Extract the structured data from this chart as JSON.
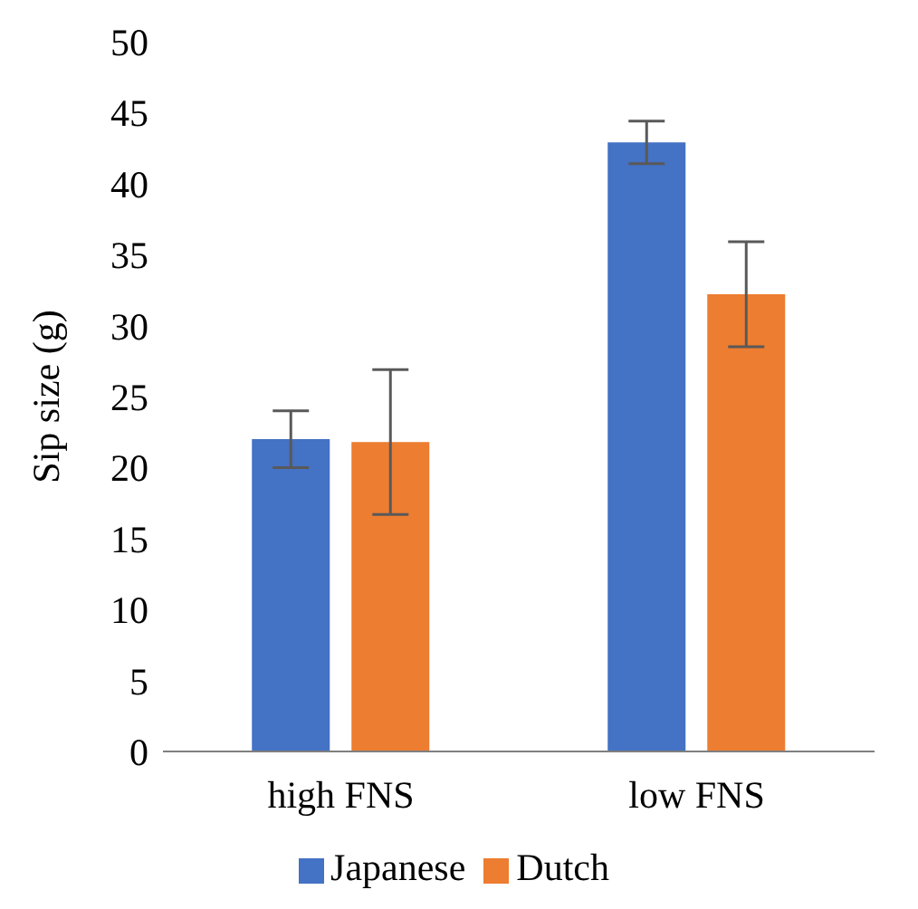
{
  "chart_data": {
    "type": "bar",
    "ylabel": "Sip size (g)",
    "categories": [
      "high FNS",
      "low FNS"
    ],
    "series": [
      {
        "name": "Japanese",
        "color": "#4472c4",
        "values": [
          22.0,
          42.9
        ],
        "errors": [
          2.0,
          1.5
        ]
      },
      {
        "name": "Dutch",
        "color": "#ed7d31",
        "values": [
          21.8,
          32.2
        ],
        "errors": [
          5.1,
          3.7
        ]
      }
    ],
    "ylim": [
      0,
      50
    ],
    "yticks": [
      0,
      5,
      10,
      15,
      20,
      25,
      30,
      35,
      40,
      45,
      50
    ],
    "grid": false,
    "legend": "bottom"
  }
}
